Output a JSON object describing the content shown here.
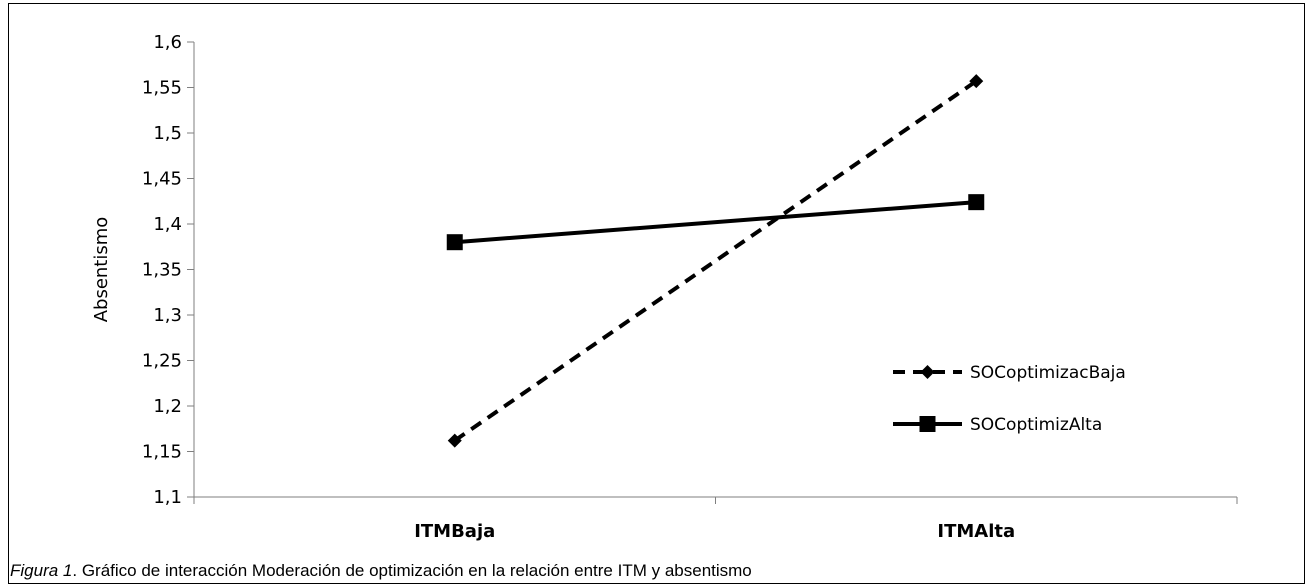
{
  "chart_data": {
    "type": "line",
    "title": "",
    "xlabel": "",
    "ylabel": "Absentismo",
    "categories": [
      "ITMBaja",
      "ITMAlta"
    ],
    "ylim": [
      1.1,
      1.6
    ],
    "yticks": [
      "1,1",
      "1,15",
      "1,2",
      "1,25",
      "1,3",
      "1,35",
      "1,4",
      "1,45",
      "1,5",
      "1,55",
      "1,6"
    ],
    "grid": false,
    "legend_position": "right",
    "series": [
      {
        "name": "SOCoptimizacBaja",
        "values": [
          1.162,
          1.557
        ],
        "style": "dashed",
        "marker": "diamond",
        "color": "#000000"
      },
      {
        "name": "SOCoptimizAlta",
        "values": [
          1.38,
          1.424
        ],
        "style": "solid",
        "marker": "square",
        "color": "#000000"
      }
    ]
  },
  "caption": {
    "figure_label": "Figura 1",
    "text": ". Gráfico de interacción Moderación de optimización en la relación entre ITM y absentismo"
  }
}
